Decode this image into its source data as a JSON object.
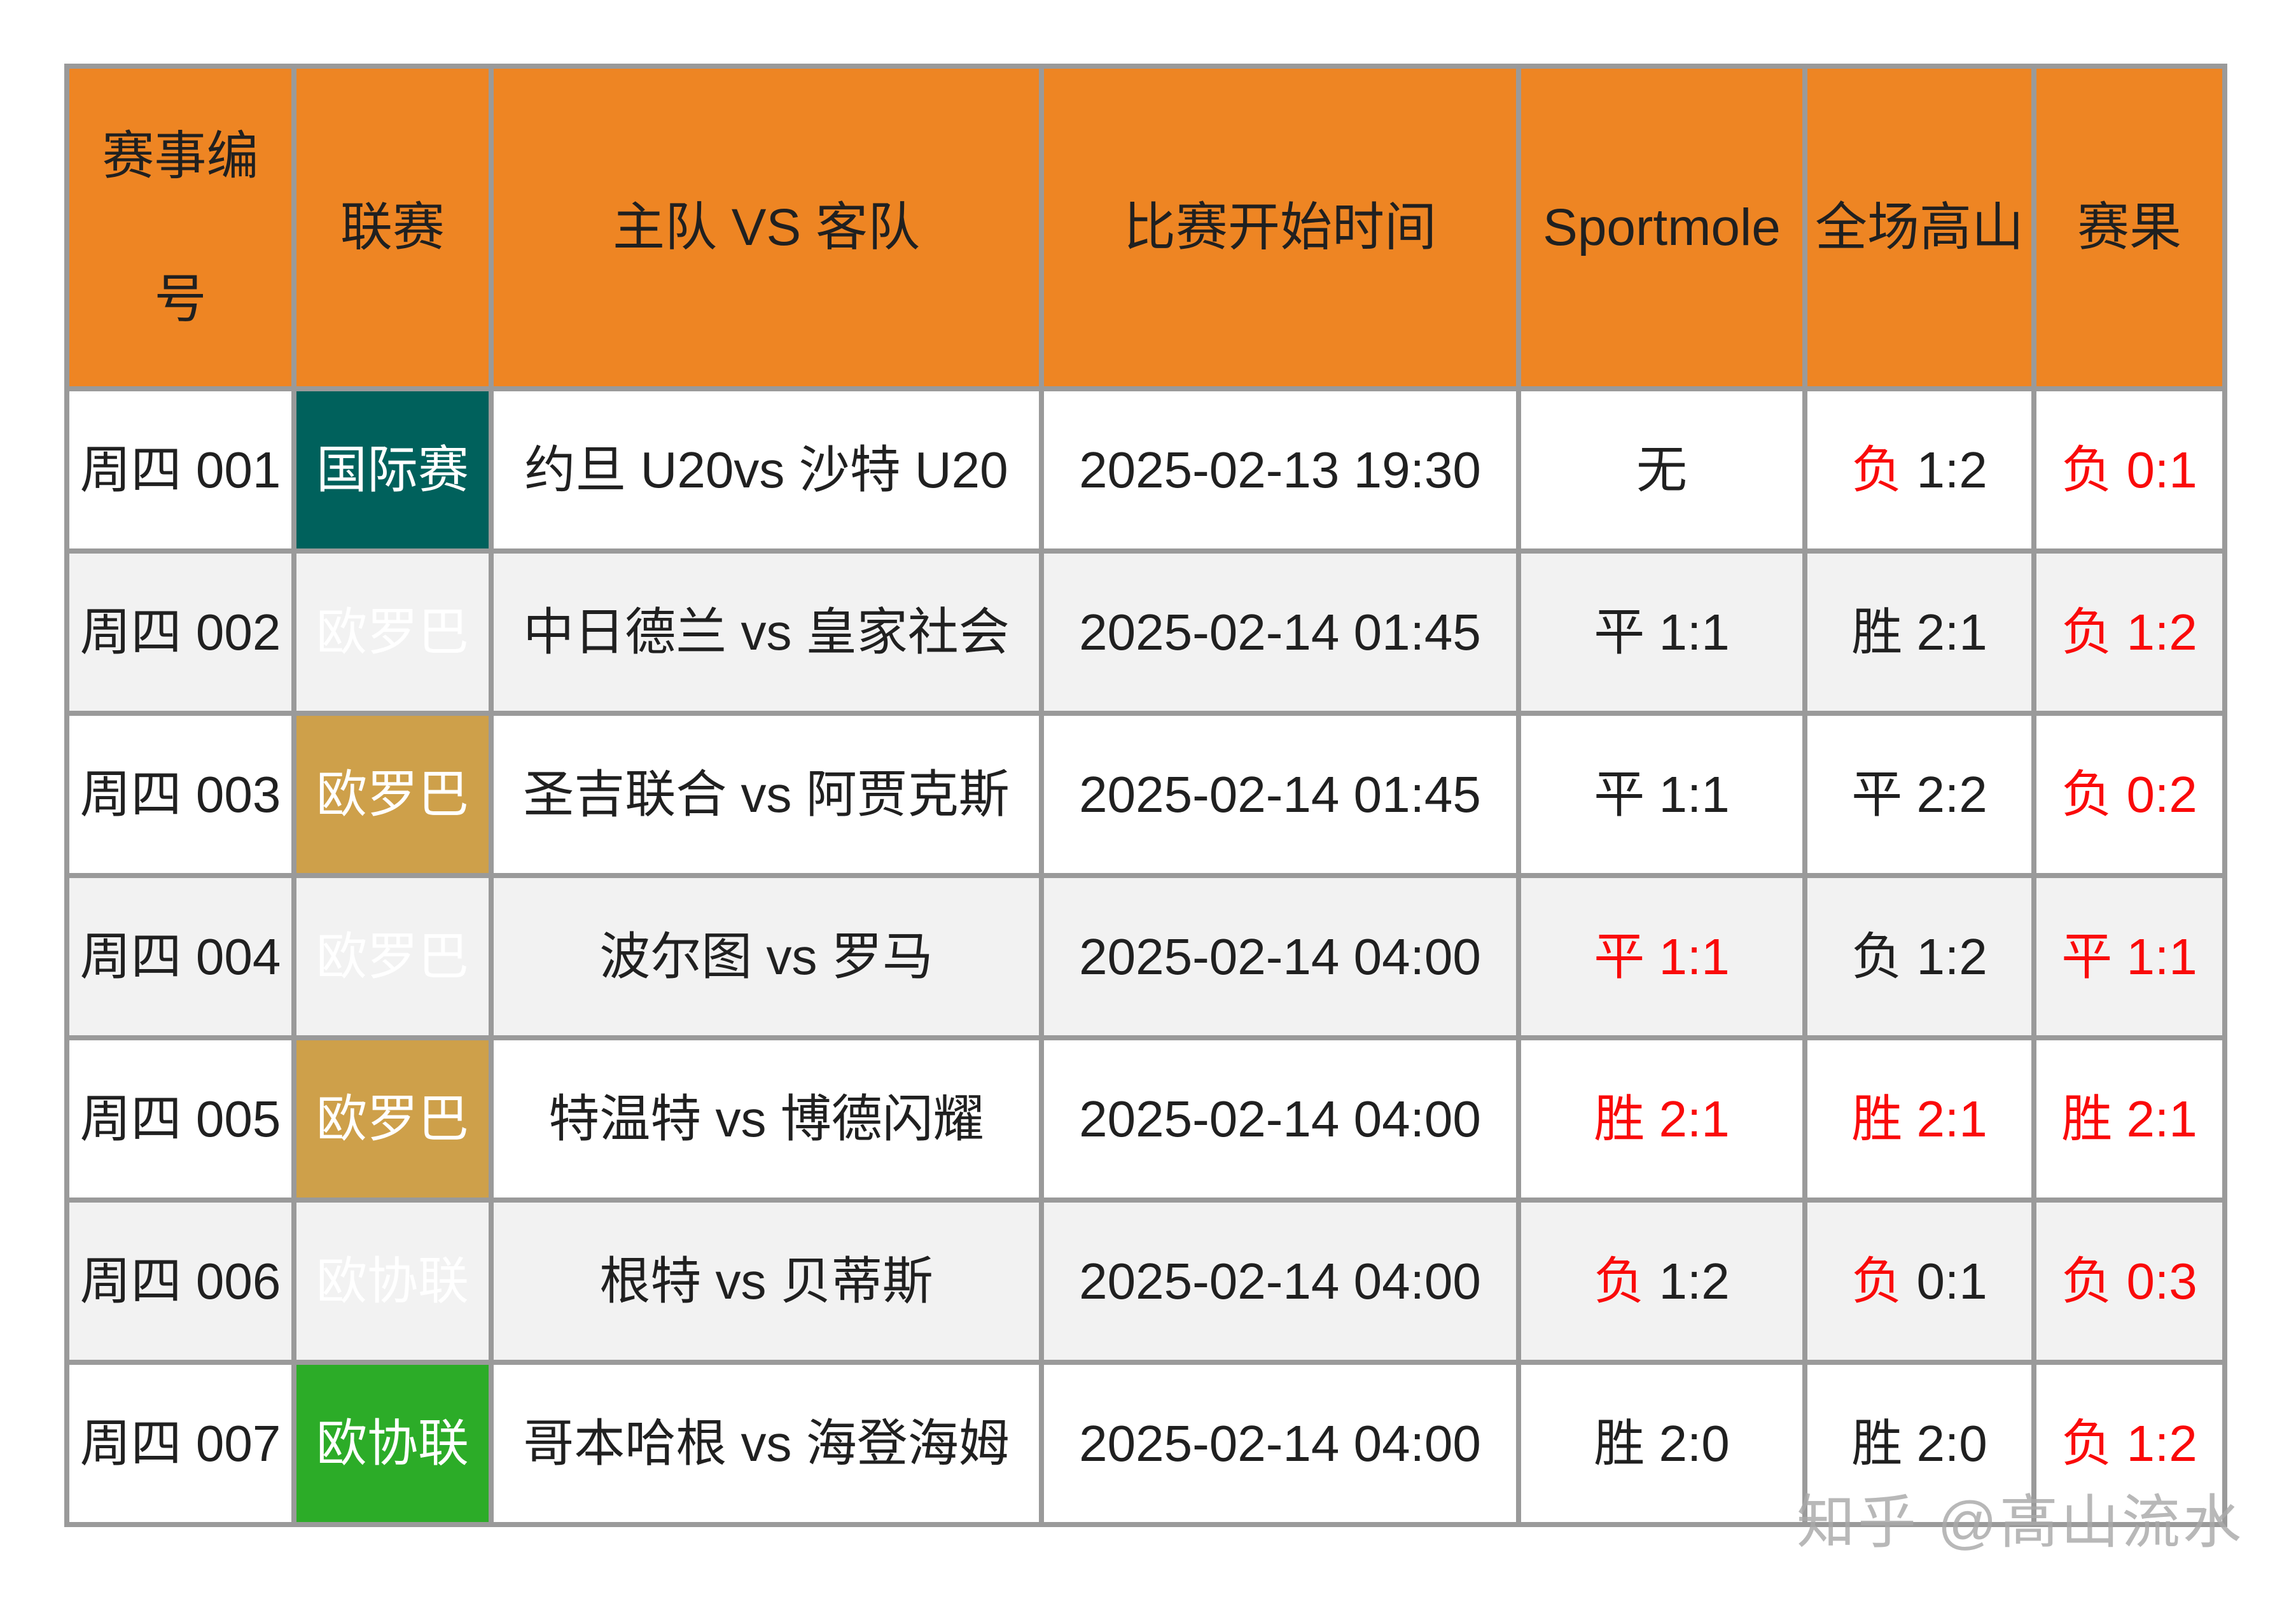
{
  "watermark": "知乎 @高山流水",
  "colors": {
    "header_bg": "#EE8523",
    "header_text": "#202020",
    "body_text": "#202020",
    "red_text": "#FA0A0A",
    "league_international_bg": "#00615C",
    "league_europa_bg": "#CEA04A",
    "league_conference_bg": "#2CAC28",
    "league_text": "#FFFFFF",
    "row_alt_bg": "#F2F2F2",
    "border": "#9A9A9A",
    "watermark_text": "#A9A9A9"
  },
  "table": {
    "headers": [
      "赛事编号",
      "联赛",
      "主队 VS 客队",
      "比赛开始时间",
      "Sportmole",
      "全场高山",
      "赛果"
    ],
    "rows": [
      {
        "match_no": "周四 001",
        "league": "国际赛",
        "league_key": "international",
        "teams": "约旦 U20vs 沙特 U20",
        "start_time": "2025-02-13 19:30",
        "sportmole": {
          "main": "无",
          "score": "",
          "main_tone": "dark",
          "score_tone": "dark"
        },
        "gaoshan": {
          "main": "负",
          "score": " 1:2",
          "main_tone": "red",
          "score_tone": "dark"
        },
        "result": {
          "main": "负",
          "score": " 0:1",
          "main_tone": "red",
          "score_tone": "red"
        }
      },
      {
        "match_no": "周四 002",
        "league": "欧罗巴",
        "league_key": "europa",
        "teams": "中日德兰 vs 皇家社会",
        "start_time": "2025-02-14 01:45",
        "sportmole": {
          "main": "平",
          "score": " 1:1",
          "main_tone": "dark",
          "score_tone": "dark"
        },
        "gaoshan": {
          "main": "胜",
          "score": " 2:1",
          "main_tone": "dark",
          "score_tone": "dark"
        },
        "result": {
          "main": "负",
          "score": " 1:2",
          "main_tone": "red",
          "score_tone": "red"
        }
      },
      {
        "match_no": "周四 003",
        "league": "欧罗巴",
        "league_key": "europa",
        "teams": "圣吉联合 vs 阿贾克斯",
        "start_time": "2025-02-14 01:45",
        "sportmole": {
          "main": "平",
          "score": " 1:1",
          "main_tone": "dark",
          "score_tone": "dark"
        },
        "gaoshan": {
          "main": "平",
          "score": " 2:2",
          "main_tone": "dark",
          "score_tone": "dark"
        },
        "result": {
          "main": "负",
          "score": " 0:2",
          "main_tone": "red",
          "score_tone": "red"
        }
      },
      {
        "match_no": "周四 004",
        "league": "欧罗巴",
        "league_key": "europa",
        "teams": "波尔图 vs 罗马",
        "start_time": "2025-02-14 04:00",
        "sportmole": {
          "main": "平",
          "score": " 1:1",
          "main_tone": "red",
          "score_tone": "red"
        },
        "gaoshan": {
          "main": "负",
          "score": " 1:2",
          "main_tone": "dark",
          "score_tone": "dark"
        },
        "result": {
          "main": "平",
          "score": " 1:1",
          "main_tone": "red",
          "score_tone": "red"
        }
      },
      {
        "match_no": "周四 005",
        "league": "欧罗巴",
        "league_key": "europa",
        "teams": "特温特 vs 博德闪耀",
        "start_time": "2025-02-14 04:00",
        "sportmole": {
          "main": "胜",
          "score": " 2:1",
          "main_tone": "red",
          "score_tone": "red"
        },
        "gaoshan": {
          "main": "胜",
          "score": " 2:1",
          "main_tone": "red",
          "score_tone": "red"
        },
        "result": {
          "main": "胜",
          "score": " 2:1",
          "main_tone": "red",
          "score_tone": "red"
        }
      },
      {
        "match_no": "周四 006",
        "league": "欧协联",
        "league_key": "conference",
        "teams": "根特 vs 贝蒂斯",
        "start_time": "2025-02-14 04:00",
        "sportmole": {
          "main": "负",
          "score": " 1:2",
          "main_tone": "red",
          "score_tone": "dark"
        },
        "gaoshan": {
          "main": "负",
          "score": " 0:1",
          "main_tone": "red",
          "score_tone": "dark"
        },
        "result": {
          "main": "负",
          "score": " 0:3",
          "main_tone": "red",
          "score_tone": "red"
        }
      },
      {
        "match_no": "周四 007",
        "league": "欧协联",
        "league_key": "conference",
        "teams": "哥本哈根 vs 海登海姆",
        "start_time": "2025-02-14 04:00",
        "sportmole": {
          "main": "胜",
          "score": " 2:0",
          "main_tone": "dark",
          "score_tone": "dark"
        },
        "gaoshan": {
          "main": "胜",
          "score": " 2:0",
          "main_tone": "dark",
          "score_tone": "dark"
        },
        "result": {
          "main": "负",
          "score": " 1:2",
          "main_tone": "red",
          "score_tone": "red"
        }
      }
    ]
  }
}
